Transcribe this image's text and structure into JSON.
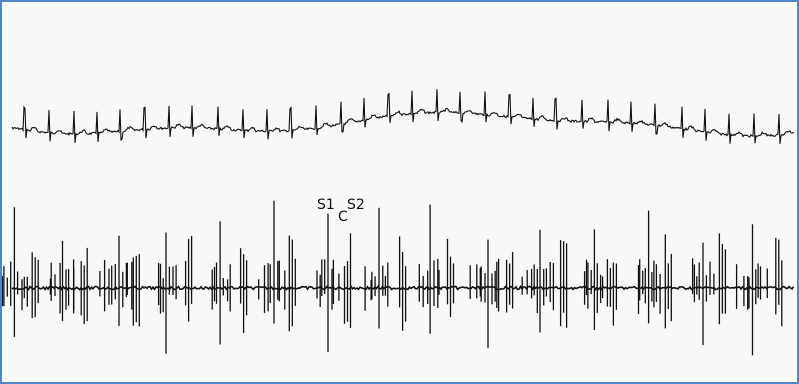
{
  "figure": {
    "border_color": "#4f86c6",
    "background_color": "#f8f8f6",
    "trace_color": "#111111"
  },
  "labels": {
    "s1": "S1",
    "c": "C",
    "s2": "S2"
  }
}
